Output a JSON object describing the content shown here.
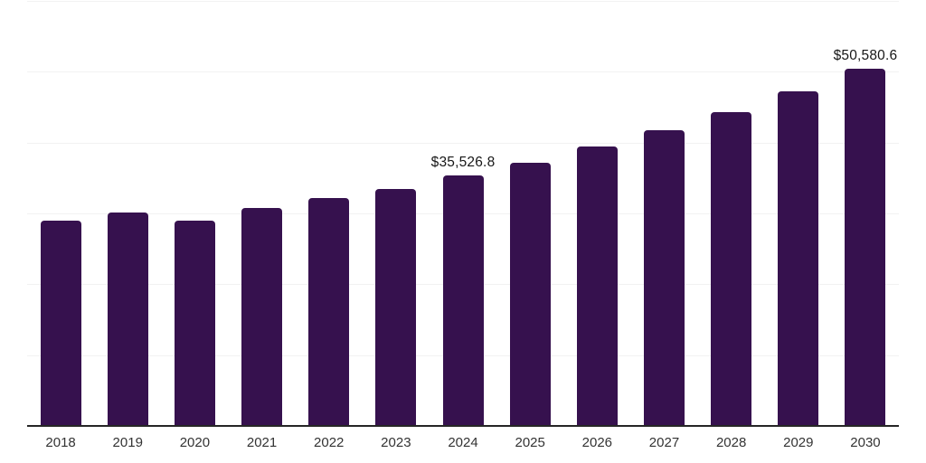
{
  "page": {
    "background_color": "#ffffff"
  },
  "chart_data": {
    "type": "bar",
    "title": "",
    "xlabel": "",
    "ylabel": "",
    "categories": [
      "2018",
      "2019",
      "2020",
      "2021",
      "2022",
      "2023",
      "2024",
      "2025",
      "2026",
      "2027",
      "2028",
      "2029",
      "2030"
    ],
    "values": [
      29150,
      30300,
      29100,
      30900,
      32350,
      33600,
      35526.8,
      37300,
      39600,
      41900,
      44450,
      47400,
      50580.6
    ],
    "value_labels": [
      "",
      "",
      "",
      "",
      "",
      "",
      "$35,526.8",
      "",
      "",
      "",
      "",
      "",
      "$50,580.6"
    ],
    "ylim": [
      0,
      60000
    ],
    "gridline_interval": 10000,
    "y_tick_labels_visible": false,
    "grid": "horizontal",
    "legend": "none",
    "bar_color": "#36114e",
    "axis_line_color": "#262626",
    "gridline_color": "#f2f2f2",
    "x_tick_color": "#333333",
    "value_label_color": "#171717"
  }
}
